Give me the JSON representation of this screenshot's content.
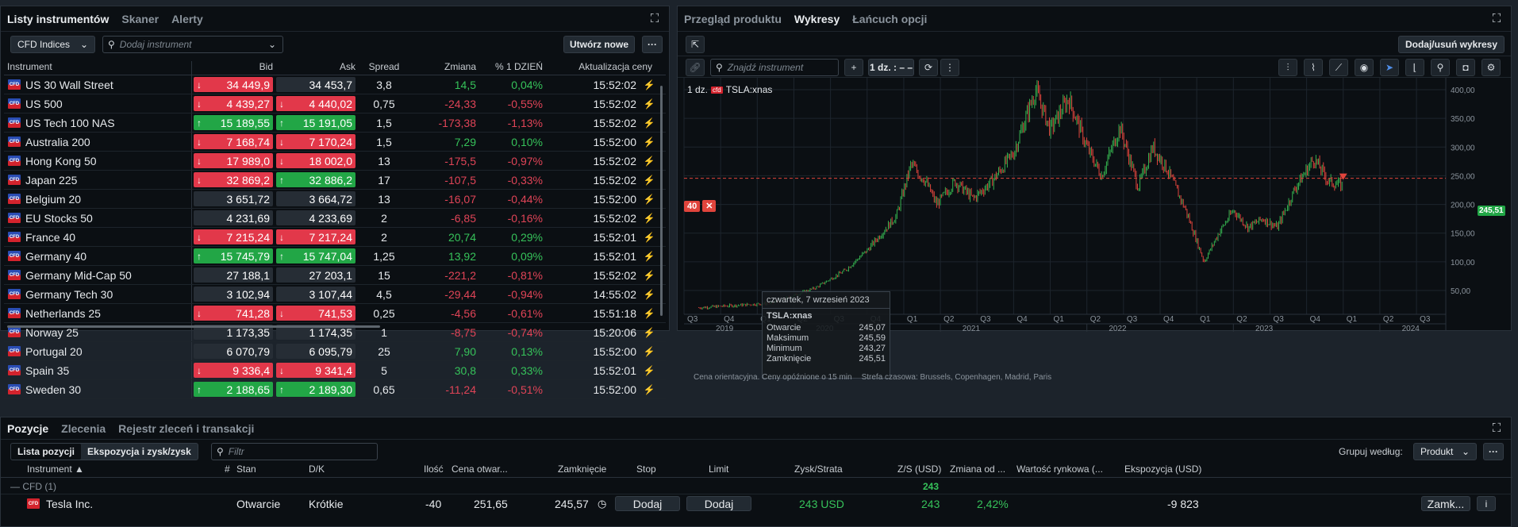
{
  "watchlist": {
    "tabs": [
      "Listy instrumentów",
      "Skaner",
      "Alerty"
    ],
    "list_select": "CFD Indices",
    "search_placeholder": "Dodaj instrument",
    "create_button": "Utwórz nowe",
    "more_button": "···",
    "columns": [
      "Instrument",
      "Bid",
      "Ask",
      "Spread",
      "Zmiana",
      "% 1 DZIEŃ",
      "Aktualizacja ceny"
    ],
    "rows": [
      {
        "name": "US 30 Wall Street",
        "bid": "34 449,9",
        "bid_dir": "dn",
        "ask": "34 453,7",
        "ask_dir": "nt",
        "spread": "3,8",
        "chg": "14,5",
        "pct": "0,04%",
        "upd": "15:52:02",
        "sign": "pos"
      },
      {
        "name": "US 500",
        "bid": "4 439,27",
        "bid_dir": "dn",
        "ask": "4 440,02",
        "ask_dir": "dn",
        "spread": "0,75",
        "chg": "-24,33",
        "pct": "-0,55%",
        "upd": "15:52:02",
        "sign": "neg"
      },
      {
        "name": "US Tech 100 NAS",
        "bid": "15 189,55",
        "bid_dir": "up",
        "ask": "15 191,05",
        "ask_dir": "up",
        "spread": "1,5",
        "chg": "-173,38",
        "pct": "-1,13%",
        "upd": "15:52:02",
        "sign": "neg"
      },
      {
        "name": "Australia 200",
        "bid": "7 168,74",
        "bid_dir": "dn",
        "ask": "7 170,24",
        "ask_dir": "dn",
        "spread": "1,5",
        "chg": "7,29",
        "pct": "0,10%",
        "upd": "15:52:00",
        "sign": "pos"
      },
      {
        "name": "Hong Kong 50",
        "bid": "17 989,0",
        "bid_dir": "dn",
        "ask": "18 002,0",
        "ask_dir": "dn",
        "spread": "13",
        "chg": "-175,5",
        "pct": "-0,97%",
        "upd": "15:52:02",
        "sign": "neg"
      },
      {
        "name": "Japan 225",
        "bid": "32 869,2",
        "bid_dir": "dn",
        "ask": "32 886,2",
        "ask_dir": "up",
        "spread": "17",
        "chg": "-107,5",
        "pct": "-0,33%",
        "upd": "15:52:02",
        "sign": "neg"
      },
      {
        "name": "Belgium 20",
        "bid": "3 651,72",
        "bid_dir": "nt",
        "ask": "3 664,72",
        "ask_dir": "nt",
        "spread": "13",
        "chg": "-16,07",
        "pct": "-0,44%",
        "upd": "15:52:00",
        "sign": "neg"
      },
      {
        "name": "EU Stocks 50",
        "bid": "4 231,69",
        "bid_dir": "nt",
        "ask": "4 233,69",
        "ask_dir": "nt",
        "spread": "2",
        "chg": "-6,85",
        "pct": "-0,16%",
        "upd": "15:52:02",
        "sign": "neg"
      },
      {
        "name": "France 40",
        "bid": "7 215,24",
        "bid_dir": "dn",
        "ask": "7 217,24",
        "ask_dir": "dn",
        "spread": "2",
        "chg": "20,74",
        "pct": "0,29%",
        "upd": "15:52:01",
        "sign": "pos"
      },
      {
        "name": "Germany 40",
        "bid": "15 745,79",
        "bid_dir": "up",
        "ask": "15 747,04",
        "ask_dir": "up",
        "spread": "1,25",
        "chg": "13,92",
        "pct": "0,09%",
        "upd": "15:52:01",
        "sign": "pos"
      },
      {
        "name": "Germany Mid-Cap 50",
        "bid": "27 188,1",
        "bid_dir": "nt",
        "ask": "27 203,1",
        "ask_dir": "nt",
        "spread": "15",
        "chg": "-221,2",
        "pct": "-0,81%",
        "upd": "15:52:02",
        "sign": "neg"
      },
      {
        "name": "Germany Tech 30",
        "bid": "3 102,94",
        "bid_dir": "nt",
        "ask": "3 107,44",
        "ask_dir": "nt",
        "spread": "4,5",
        "chg": "-29,44",
        "pct": "-0,94%",
        "upd": "14:55:02",
        "sign": "neg"
      },
      {
        "name": "Netherlands 25",
        "bid": "741,28",
        "bid_dir": "dn",
        "ask": "741,53",
        "ask_dir": "dn",
        "spread": "0,25",
        "chg": "-4,56",
        "pct": "-0,61%",
        "upd": "15:51:18",
        "sign": "neg"
      },
      {
        "name": "Norway 25",
        "bid": "1 173,35",
        "bid_dir": "nt",
        "ask": "1 174,35",
        "ask_dir": "nt",
        "spread": "1",
        "chg": "-8,75",
        "pct": "-0,74%",
        "upd": "15:20:06",
        "sign": "neg"
      },
      {
        "name": "Portugal 20",
        "bid": "6 070,79",
        "bid_dir": "nt",
        "ask": "6 095,79",
        "ask_dir": "nt",
        "spread": "25",
        "chg": "7,90",
        "pct": "0,13%",
        "upd": "15:52:00",
        "sign": "pos"
      },
      {
        "name": "Spain 35",
        "bid": "9 336,4",
        "bid_dir": "dn",
        "ask": "9 341,4",
        "ask_dir": "dn",
        "spread": "5",
        "chg": "30,8",
        "pct": "0,33%",
        "upd": "15:52:01",
        "sign": "pos"
      },
      {
        "name": "Sweden 30",
        "bid": "2 188,65",
        "bid_dir": "up",
        "ask": "2 189,30",
        "ask_dir": "up",
        "spread": "0,65",
        "chg": "-11,24",
        "pct": "-0,51%",
        "upd": "15:52:00",
        "sign": "neg"
      }
    ]
  },
  "chart_panel": {
    "tabs": [
      "Przegląd produktu",
      "Wykresy",
      "Łańcuch opcji"
    ],
    "add_remove_button": "Dodaj/usuń wykresy",
    "search_placeholder": "Znajdź instrument",
    "interval": "1 dz. : – –",
    "instrument_label": "1 dz.",
    "instrument_tag": "cfd",
    "instrument": "TSLA:xnas",
    "order_qty": "40",
    "last_price": "245,51",
    "tooltip": {
      "date": "czwartek, 7 wrzesień 2023",
      "symbol": "TSLA:xnas",
      "rows": [
        [
          "Otwarcie",
          "245,07"
        ],
        [
          "Maksimum",
          "245,59"
        ],
        [
          "Minimum",
          "243,27"
        ],
        [
          "Zamknięcie",
          "245,51"
        ]
      ]
    },
    "footer_note": "Cena orientacyjna. Ceny opóźnione o 15 min",
    "tz_note": "Strefa czasowa: Brussels, Copenhagen, Madrid, Paris",
    "y_ticks": [
      "400,00",
      "350,00",
      "300,00",
      "250,00",
      "200,00",
      "150,00",
      "100,00",
      "50,00"
    ],
    "quarters": [
      "Q3",
      "Q4",
      "Q1",
      "Q2",
      "Q3",
      "Q4",
      "Q1",
      "Q2",
      "Q3",
      "Q4",
      "Q1",
      "Q2",
      "Q3",
      "Q4",
      "Q1",
      "Q2",
      "Q3",
      "Q4",
      "Q1",
      "Q2",
      "Q3"
    ],
    "years": [
      "2019",
      "2020",
      "2021",
      "2022",
      "2023",
      "2024"
    ],
    "colors": {
      "up": "#35b24f",
      "down": "#e0443c",
      "line": "#e0443c"
    }
  },
  "positions": {
    "tabs": [
      "Pozycje",
      "Zlecenia",
      "Rejestr zleceń i transakcji"
    ],
    "subtabs": [
      "Lista pozycji",
      "Ekspozycja i zysk/zysk"
    ],
    "filter_placeholder": "Filtr",
    "group_label": "Grupuj według:",
    "group_value": "Produkt",
    "columns": [
      "Instrument ▲",
      "#",
      "Stan",
      "D/K",
      "Ilość",
      "Cena otwar...",
      "Zamknięcie",
      "Stop",
      "Limit",
      "Zysk/Strata",
      "Z/S (USD)",
      "Zmiana od ...",
      "Wartość rynkowa (...",
      "Ekspozycja (USD)"
    ],
    "group": {
      "name": "— CFD (1)",
      "zs": "243"
    },
    "row": {
      "name": "Tesla Inc.",
      "state": "Otwarcie",
      "dk": "Krótkie",
      "qty": "-40",
      "open": "251,65",
      "close": "245,57",
      "stop": "Dodaj",
      "limit": "Dodaj",
      "pl": "243 USD",
      "zs": "243",
      "chg": "2,42%",
      "exposure": "-9 823",
      "close_btn": "Zamk...",
      "info": "i"
    }
  }
}
